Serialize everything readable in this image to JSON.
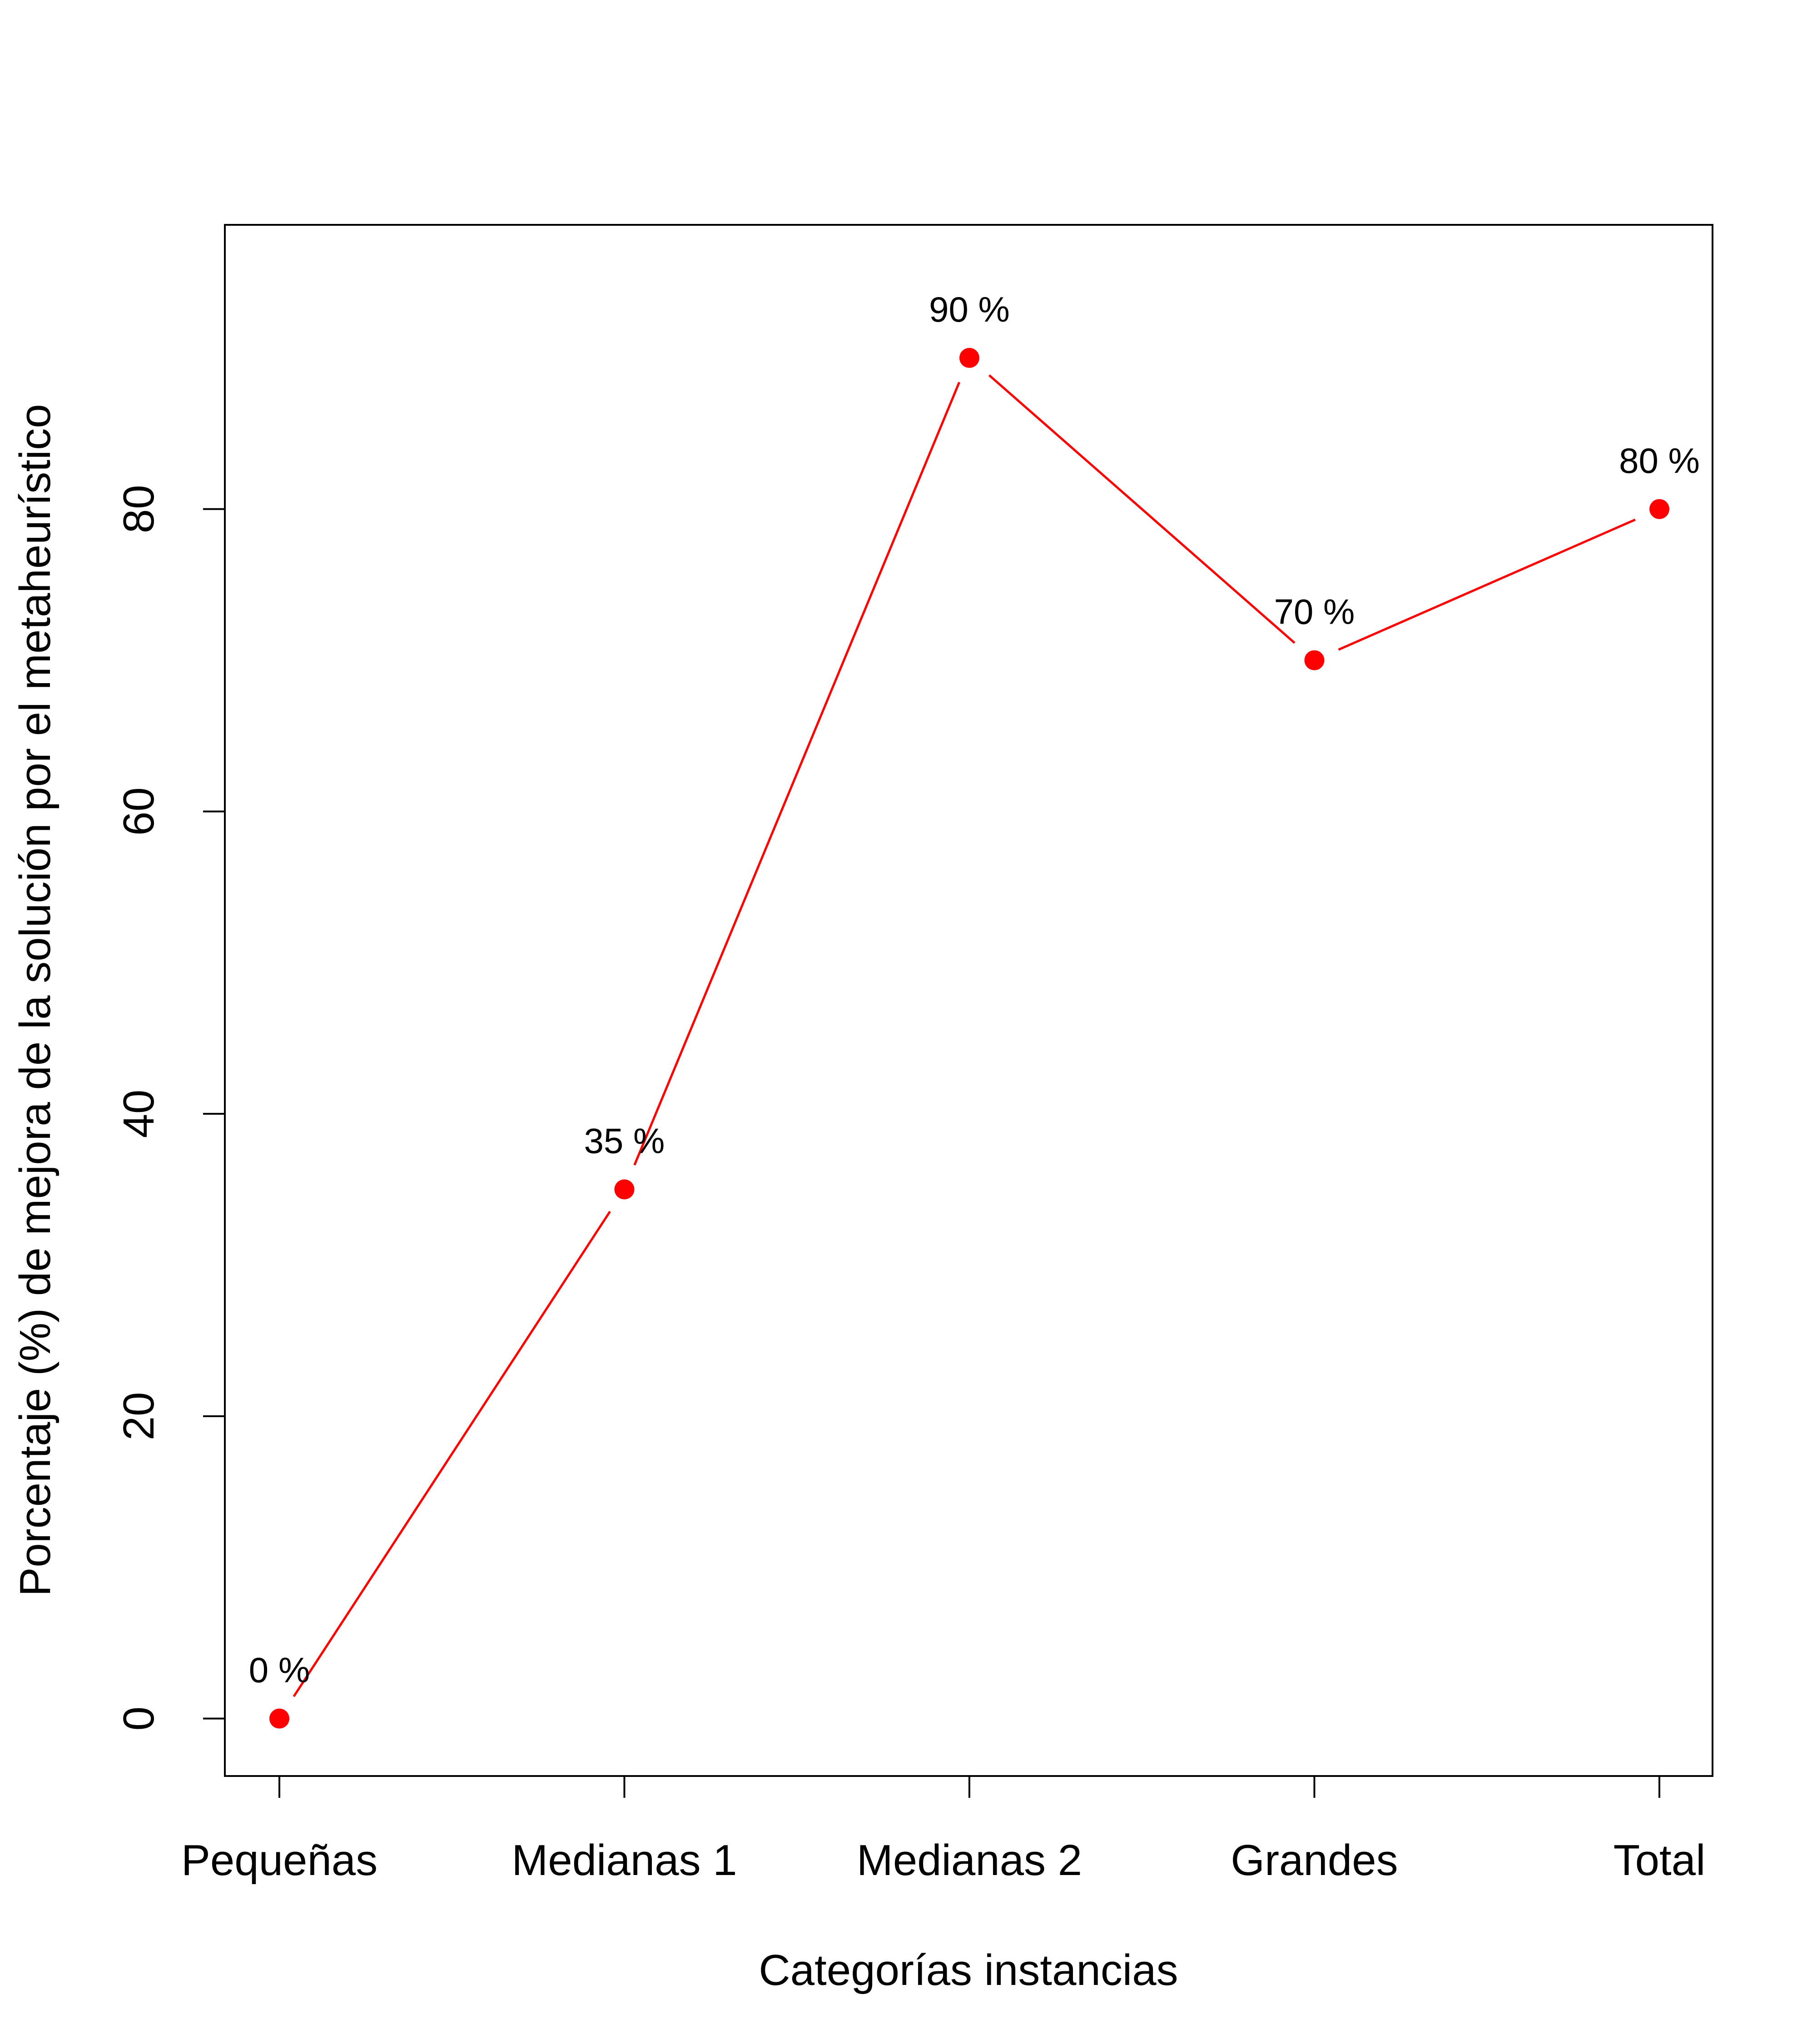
{
  "chart_data": {
    "type": "line",
    "categories": [
      "Pequeñas",
      "Medianas 1",
      "Medianas 2",
      "Grandes",
      "Total"
    ],
    "values": [
      0,
      35,
      90,
      70,
      80
    ],
    "point_labels": [
      "0 %",
      "35 %",
      "90 %",
      "70 %",
      "80 %"
    ],
    "xlabel": "Categorías instancias",
    "ylabel": "Porcentaje (%) de mejora de la solución por el metaheurístico",
    "yticks": [
      0,
      20,
      40,
      60,
      80
    ],
    "ylim": [
      -3.8,
      98.8
    ],
    "grid": false,
    "legend": "none",
    "line_color": "#ff0000",
    "marker_color": "#ff0000"
  }
}
